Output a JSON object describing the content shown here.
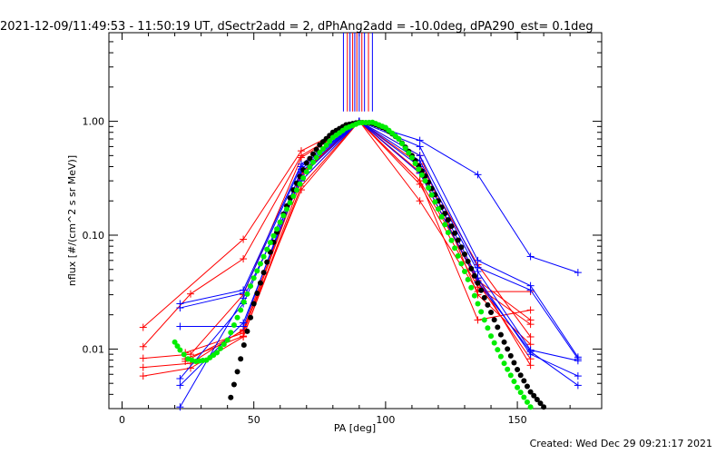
{
  "chart_data": {
    "type": "scatter",
    "title": "2021-12-09/11:49:53 - 11:50:19 UT, dSectr2add = 2, dPhAng2add = -10.0deg, dPA290_est=  0.1deg",
    "xlabel": "PA [deg]",
    "ylabel": "nflux [#/(cm^2 s sr MeV)]",
    "footer": "Created: Wed Dec 29 09:21:17 2021",
    "xlim": [
      -5,
      182
    ],
    "ylim": [
      0.003,
      6.0
    ],
    "yscale": "log",
    "grid": false,
    "x_ticks": [
      0,
      50,
      100,
      150
    ],
    "x_tick_labels": [
      "0",
      "50",
      "100",
      "150"
    ],
    "y_ticks": [
      1.0,
      0.1,
      0.01
    ],
    "y_tick_labels": [
      "1.00",
      "0.10",
      "0.01"
    ],
    "colors": {
      "red": "#ff0000",
      "blue": "#0000ff",
      "black": "#000000",
      "green": "#00ee00"
    },
    "vertical_markers": {
      "y_range": [
        1.22,
        6.0
      ],
      "lines": [
        {
          "x": 84,
          "color": "#0000ff"
        },
        {
          "x": 85.5,
          "color": "#ff0000"
        },
        {
          "x": 86.5,
          "color": "#0000ff"
        },
        {
          "x": 87.5,
          "color": "#ff0000"
        },
        {
          "x": 88.3,
          "color": "#0000ff"
        },
        {
          "x": 89.1,
          "color": "#ff0000"
        },
        {
          "x": 90.0,
          "color": "#0000ff"
        },
        {
          "x": 91.0,
          "color": "#ff0000"
        },
        {
          "x": 92.0,
          "color": "#0000ff"
        },
        {
          "x": 93.5,
          "color": "#ff0000"
        },
        {
          "x": 95.0,
          "color": "#0000ff"
        }
      ]
    },
    "series": [
      {
        "color": "#ff0000",
        "marker": "plus",
        "x": [
          8,
          46,
          68,
          90,
          113,
          135,
          155
        ],
        "y": [
          0.0155,
          0.092,
          0.55,
          1.0,
          0.35,
          0.04,
          0.018
        ]
      },
      {
        "color": "#ff0000",
        "marker": "plus",
        "x": [
          8,
          26,
          46,
          68,
          90,
          113,
          135,
          155
        ],
        "y": [
          0.0105,
          0.0305,
          0.062,
          0.5,
          1.0,
          0.2,
          0.032,
          0.032
        ]
      },
      {
        "color": "#ff0000",
        "marker": "plus",
        "x": [
          8,
          26,
          46,
          68,
          90,
          113,
          135,
          155
        ],
        "y": [
          0.0083,
          0.009,
          0.03,
          0.48,
          1.0,
          0.3,
          0.018,
          0.022
        ]
      },
      {
        "color": "#ff0000",
        "marker": "plus",
        "x": [
          8,
          26,
          46,
          68,
          90,
          113,
          135,
          155
        ],
        "y": [
          0.0069,
          0.0075,
          0.0148,
          0.35,
          1.0,
          0.28,
          0.035,
          0.0165
        ]
      },
      {
        "color": "#ff0000",
        "marker": "plus",
        "x": [
          8,
          26,
          46,
          68,
          90,
          113,
          135,
          155
        ],
        "y": [
          0.0058,
          0.0068,
          0.0128,
          0.3,
          1.0,
          0.5,
          0.03,
          0.011
        ]
      },
      {
        "color": "#ff0000",
        "marker": "plus",
        "x": [
          24,
          46,
          68,
          90,
          113,
          135,
          155
        ],
        "y": [
          0.0093,
          0.0138,
          0.34,
          1.0,
          0.42,
          0.055,
          0.0128
        ]
      },
      {
        "color": "#ff0000",
        "marker": "plus",
        "x": [
          24,
          46,
          68,
          90,
          113,
          135,
          155
        ],
        "y": [
          0.0082,
          0.013,
          0.27,
          1.0,
          0.36,
          0.038,
          0.0082
        ]
      },
      {
        "color": "#ff0000",
        "marker": "plus",
        "x": [
          24,
          46,
          68,
          90,
          113,
          135,
          155
        ],
        "y": [
          0.0078,
          0.0145,
          0.25,
          1.0,
          0.3,
          0.042,
          0.0072
        ]
      },
      {
        "color": "#0000ff",
        "marker": "plus",
        "x": [
          22,
          46,
          68,
          90,
          113,
          135,
          155,
          173
        ],
        "y": [
          0.025,
          0.033,
          0.42,
          1.0,
          0.68,
          0.34,
          0.065,
          0.047
        ]
      },
      {
        "color": "#0000ff",
        "marker": "plus",
        "x": [
          22,
          46,
          68,
          90,
          113,
          135,
          155,
          173
        ],
        "y": [
          0.023,
          0.031,
          0.4,
          1.0,
          0.6,
          0.06,
          0.036,
          0.0085
        ]
      },
      {
        "color": "#0000ff",
        "marker": "plus",
        "x": [
          22,
          46,
          68,
          90,
          113,
          135,
          155,
          173
        ],
        "y": [
          0.0158,
          0.0158,
          0.38,
          1.0,
          0.5,
          0.052,
          0.033,
          0.0082
        ]
      },
      {
        "color": "#0000ff",
        "marker": "plus",
        "x": [
          22,
          46,
          68,
          90,
          113,
          135,
          155,
          173
        ],
        "y": [
          0.0055,
          0.025,
          0.36,
          1.0,
          0.45,
          0.048,
          0.0098,
          0.0079
        ]
      },
      {
        "color": "#0000ff",
        "marker": "plus",
        "x": [
          22,
          46,
          68,
          90,
          113,
          135,
          155,
          173
        ],
        "y": [
          0.0048,
          0.017,
          0.33,
          1.0,
          0.4,
          0.042,
          0.009,
          0.0058
        ]
      },
      {
        "color": "#0000ff",
        "marker": "plus",
        "x": [
          22,
          46,
          68,
          90,
          113,
          135,
          155,
          173
        ],
        "y": [
          0.0031,
          0.028,
          0.3,
          1.0,
          0.35,
          0.039,
          0.0095,
          0.0048
        ]
      }
    ],
    "fits": [
      {
        "color": "#000000",
        "marker": "dot",
        "x": [
          40,
          45,
          50,
          55,
          60,
          65,
          70,
          75,
          80,
          85,
          90,
          95,
          100,
          105,
          110,
          115,
          120,
          125,
          130,
          135,
          140,
          145,
          150,
          155,
          160
        ],
        "y": [
          0.0029,
          0.0082,
          0.025,
          0.058,
          0.13,
          0.25,
          0.43,
          0.62,
          0.8,
          0.93,
          0.98,
          0.96,
          0.86,
          0.7,
          0.5,
          0.33,
          0.2,
          0.12,
          0.068,
          0.038,
          0.021,
          0.0115,
          0.0066,
          0.0042,
          0.0031
        ]
      },
      {
        "color": "#00ee00",
        "marker": "dot",
        "x": [
          20,
          22,
          25,
          28,
          32,
          36,
          40,
          45,
          50,
          55,
          60,
          65,
          70,
          75,
          80,
          85,
          90,
          95,
          100,
          105,
          110,
          115,
          120,
          125,
          130,
          135,
          140,
          145,
          150,
          155
        ],
        "y": [
          0.0115,
          0.0098,
          0.0082,
          0.0078,
          0.008,
          0.0093,
          0.012,
          0.022,
          0.042,
          0.075,
          0.13,
          0.22,
          0.36,
          0.53,
          0.72,
          0.87,
          0.97,
          0.98,
          0.88,
          0.7,
          0.48,
          0.3,
          0.17,
          0.09,
          0.048,
          0.025,
          0.013,
          0.0075,
          0.0046,
          0.0031
        ]
      }
    ]
  }
}
